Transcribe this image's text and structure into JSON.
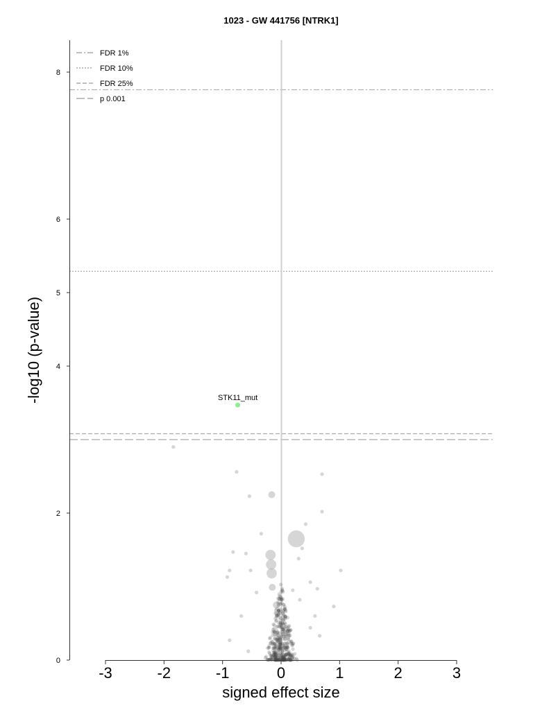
{
  "chart_data": {
    "type": "scatter",
    "title": "1023 - GW 441756 [NTRK1]",
    "xlabel": "signed effect size",
    "ylabel": "-log10 (p-value)",
    "xlim": [
      -3.6,
      3.6
    ],
    "ylim": [
      0,
      8.5
    ],
    "xticks": [
      -3,
      -2,
      -1,
      0,
      1,
      2,
      3
    ],
    "xtick_labels": [
      "-3",
      "-2",
      "-1",
      "0",
      "1",
      "2",
      "3"
    ],
    "yticks": [
      0,
      2,
      4,
      5,
      6,
      8
    ],
    "ytick_labels": [
      "0",
      "2",
      "4",
      "5",
      "6",
      "8"
    ],
    "grid": false,
    "legend_position": "top-left",
    "thresholds": [
      {
        "label": "FDR 1%",
        "y": 7.76,
        "style": "dashdot"
      },
      {
        "label": "FDR 10%",
        "y": 5.29,
        "style": "dotted"
      },
      {
        "label": "FDR 25%",
        "y": 3.08,
        "style": "dashed"
      },
      {
        "label": "p 0.001",
        "y": 3.0,
        "style": "longdash"
      }
    ],
    "highlighted": [
      {
        "label": "STK11_mut",
        "x": -0.74,
        "y": 3.47,
        "color": "#90ee90"
      }
    ],
    "points_gray": [
      {
        "x": -1.84,
        "y": 2.9,
        "s": 1
      },
      {
        "x": -0.76,
        "y": 2.56,
        "s": 1
      },
      {
        "x": 0.7,
        "y": 2.53,
        "s": 1
      },
      {
        "x": -0.54,
        "y": 2.23,
        "s": 1
      },
      {
        "x": -0.16,
        "y": 2.25,
        "s": 2
      },
      {
        "x": 0.7,
        "y": 2.02,
        "s": 1
      },
      {
        "x": 0.42,
        "y": 1.85,
        "s": 1
      },
      {
        "x": 0.26,
        "y": 1.65,
        "s": 5
      },
      {
        "x": -0.34,
        "y": 1.72,
        "s": 1
      },
      {
        "x": -0.82,
        "y": 1.47,
        "s": 1
      },
      {
        "x": -0.88,
        "y": 1.22,
        "s": 1
      },
      {
        "x": -0.92,
        "y": 1.13,
        "s": 1
      },
      {
        "x": -0.18,
        "y": 1.43,
        "s": 3
      },
      {
        "x": -0.17,
        "y": 1.3,
        "s": 3
      },
      {
        "x": -0.16,
        "y": 1.18,
        "s": 3
      },
      {
        "x": -0.15,
        "y": 0.99,
        "s": 2
      },
      {
        "x": 0.36,
        "y": 1.52,
        "s": 1
      },
      {
        "x": 0.3,
        "y": 1.38,
        "s": 1
      },
      {
        "x": 1.02,
        "y": 1.22,
        "s": 1
      },
      {
        "x": -0.6,
        "y": 1.45,
        "s": 1
      },
      {
        "x": -0.52,
        "y": 1.22,
        "s": 1
      },
      {
        "x": 0.62,
        "y": 0.97,
        "s": 1
      },
      {
        "x": 0.5,
        "y": 1.06,
        "s": 1
      },
      {
        "x": 0.9,
        "y": 0.73,
        "s": 1
      },
      {
        "x": -0.68,
        "y": 0.6,
        "s": 1
      },
      {
        "x": -0.42,
        "y": 0.92,
        "s": 1
      },
      {
        "x": 0.32,
        "y": 0.82,
        "s": 1
      },
      {
        "x": -0.08,
        "y": 0.75,
        "s": 2
      },
      {
        "x": 0.58,
        "y": 0.6,
        "s": 1
      },
      {
        "x": -0.88,
        "y": 0.27,
        "s": 1
      },
      {
        "x": 0.66,
        "y": 0.33,
        "s": 1
      },
      {
        "x": 0.5,
        "y": 0.44,
        "s": 1
      },
      {
        "x": -0.56,
        "y": 0.12,
        "s": 1
      },
      {
        "x": 0.2,
        "y": 0.95,
        "s": 1
      }
    ],
    "dense_cluster": {
      "x_center": 0.0,
      "x_spread": 0.3,
      "y_max": 1.05,
      "count": 420
    }
  }
}
